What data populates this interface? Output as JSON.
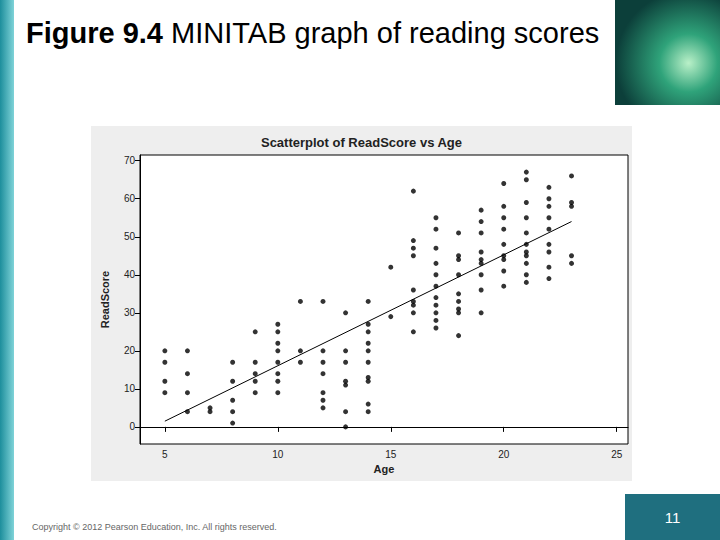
{
  "slide": {
    "figure_label": "Figure 9.4",
    "title": "MINITAB graph of reading scores",
    "footer": "Copyright © 2012 Pearson Education, Inc. All rights reserved.",
    "page": 11
  },
  "chart_data": {
    "type": "scatter",
    "title": "Scatterplot of ReadScore vs Age",
    "x_label": "Age",
    "y_label": "ReadScore",
    "xlim": [
      3.9,
      25.5
    ],
    "xticks": [
      5,
      10,
      15,
      20,
      25
    ],
    "ylim": [
      -4.5,
      71.5
    ],
    "yticks": [
      0,
      10,
      20,
      30,
      40,
      50,
      60,
      70
    ],
    "grid": false,
    "series": [
      {
        "type": "scatter",
        "color": "#000000",
        "marker": "circle",
        "x": [
          5,
          5,
          5,
          5,
          6,
          6,
          6,
          6,
          7,
          7,
          8,
          8,
          8,
          8,
          8,
          9,
          9,
          9,
          9,
          9,
          10,
          10,
          10,
          10,
          10,
          10,
          10,
          10,
          11,
          11,
          11,
          12,
          12,
          12,
          12,
          12,
          12,
          12,
          13,
          13,
          13,
          13,
          13,
          13,
          13,
          14,
          14,
          14,
          14,
          14,
          14,
          14,
          14,
          14,
          14,
          15,
          15,
          16,
          16,
          16,
          16,
          16,
          16,
          16,
          16,
          16,
          17,
          17,
          17,
          17,
          17,
          17,
          17,
          17,
          17,
          17,
          17,
          18,
          18,
          18,
          18,
          18,
          18,
          18,
          18,
          18,
          19,
          19,
          19,
          19,
          19,
          19,
          19,
          19,
          19,
          20,
          20,
          20,
          20,
          20,
          20,
          20,
          20,
          20,
          21,
          21,
          21,
          21,
          21,
          21,
          21,
          21,
          21,
          21,
          21,
          22,
          22,
          22,
          22,
          22,
          22,
          22,
          22,
          22,
          23,
          23,
          23,
          23,
          23
        ],
        "values": [
          20,
          17,
          12,
          9,
          20,
          14,
          9,
          4,
          5,
          4,
          17,
          12,
          7,
          4,
          1,
          25,
          17,
          14,
          12,
          9,
          27,
          25,
          22,
          20,
          17,
          14,
          12,
          9,
          33,
          20,
          17,
          33,
          20,
          17,
          14,
          9,
          7,
          5,
          30,
          20,
          17,
          12,
          11,
          4,
          0,
          33,
          27,
          25,
          22,
          20,
          17,
          13,
          12,
          6,
          4,
          42,
          29,
          62,
          49,
          47,
          45,
          36,
          33,
          32,
          30,
          25,
          55,
          52,
          47,
          43,
          40,
          37,
          34,
          32,
          30,
          28,
          26,
          51,
          45,
          44,
          40,
          35,
          33,
          31,
          30,
          24,
          57,
          54,
          51,
          46,
          44,
          43,
          40,
          36,
          30,
          64,
          58,
          55,
          52,
          48,
          45,
          44,
          41,
          37,
          67,
          65,
          59,
          55,
          51,
          48,
          46,
          45,
          43,
          40,
          38,
          63,
          60,
          58,
          55,
          52,
          48,
          46,
          42,
          39,
          66,
          59,
          58,
          45,
          43
        ]
      },
      {
        "type": "line",
        "color": "#000000",
        "line_style": "solid",
        "x": [
          5,
          23
        ],
        "values": [
          1.5,
          54
        ]
      }
    ]
  }
}
